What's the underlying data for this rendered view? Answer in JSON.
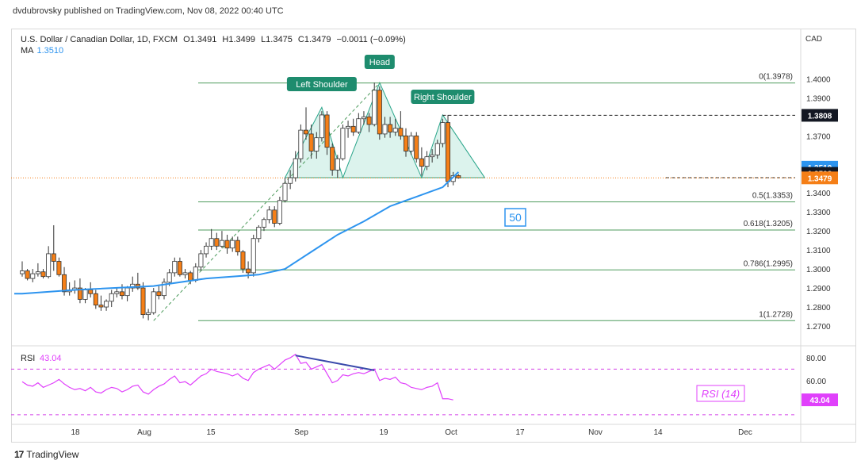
{
  "header": {
    "publisher": "dvdubrovsky published on TradingView.com, Nov 08, 2022 00:40 UTC",
    "symbol": "U.S. Dollar / Canadian Dollar, 1D, FXCM",
    "open": "O1.3491",
    "high": "H1.3499",
    "low": "L1.3475",
    "close": "C1.3479",
    "change": "−0.0011 (−0.09%)",
    "ma_label": "MA",
    "ma_value": "1.3510"
  },
  "colors": {
    "up_body": "#ffffff",
    "down_body": "#f57f17",
    "candle_outline": "#333333",
    "ma_line": "#2d94ef",
    "fib_lines": "#4d9b5c",
    "pattern_fill": "#d3f0e8",
    "pattern_label_bg": "#1e8c6e",
    "rsi_line": "#e040fb",
    "divergence": "#3949ab",
    "price_badge": "#f57f17"
  },
  "brand": {
    "logo": "17",
    "name": "TradingView"
  },
  "chart_data": {
    "type": "candlestick",
    "currency": "CAD",
    "ylim": [
      1.265,
      1.406
    ],
    "y_ticks": [
      1.27,
      1.28,
      1.29,
      1.3,
      1.31,
      1.32,
      1.33,
      1.34,
      1.37,
      1.39,
      1.4
    ],
    "y_tick_labels": [
      "1.2700",
      "1.2800",
      "1.2900",
      "1.3000",
      "1.3100",
      "1.3200",
      "1.3300",
      "1.3400",
      "1.3700",
      "1.3900",
      "1.4000"
    ],
    "x_tick_labels": [
      "18",
      "Aug",
      "15",
      "Sep",
      "19",
      "Oct",
      "17",
      "Nov",
      "14",
      "Dec"
    ],
    "candles": [
      {
        "o": 1.2975,
        "h": 1.304,
        "l": 1.296,
        "c": 1.299
      },
      {
        "o": 1.299,
        "h": 1.3,
        "l": 1.294,
        "c": 1.295
      },
      {
        "o": 1.295,
        "h": 1.3,
        "l": 1.293,
        "c": 1.2975
      },
      {
        "o": 1.2975,
        "h": 1.303,
        "l": 1.296,
        "c": 1.2985
      },
      {
        "o": 1.2985,
        "h": 1.3,
        "l": 1.295,
        "c": 1.296
      },
      {
        "o": 1.296,
        "h": 1.312,
        "l": 1.295,
        "c": 1.308
      },
      {
        "o": 1.308,
        "h": 1.323,
        "l": 1.299,
        "c": 1.304
      },
      {
        "o": 1.304,
        "h": 1.306,
        "l": 1.296,
        "c": 1.297
      },
      {
        "o": 1.297,
        "h": 1.301,
        "l": 1.286,
        "c": 1.288
      },
      {
        "o": 1.288,
        "h": 1.293,
        "l": 1.286,
        "c": 1.289
      },
      {
        "o": 1.289,
        "h": 1.294,
        "l": 1.287,
        "c": 1.29
      },
      {
        "o": 1.29,
        "h": 1.295,
        "l": 1.282,
        "c": 1.284
      },
      {
        "o": 1.284,
        "h": 1.29,
        "l": 1.282,
        "c": 1.289
      },
      {
        "o": 1.289,
        "h": 1.293,
        "l": 1.285,
        "c": 1.287
      },
      {
        "o": 1.287,
        "h": 1.289,
        "l": 1.279,
        "c": 1.281
      },
      {
        "o": 1.281,
        "h": 1.286,
        "l": 1.278,
        "c": 1.28
      },
      {
        "o": 1.28,
        "h": 1.284,
        "l": 1.278,
        "c": 1.283
      },
      {
        "o": 1.283,
        "h": 1.289,
        "l": 1.28,
        "c": 1.287
      },
      {
        "o": 1.287,
        "h": 1.29,
        "l": 1.285,
        "c": 1.288
      },
      {
        "o": 1.288,
        "h": 1.292,
        "l": 1.284,
        "c": 1.286
      },
      {
        "o": 1.286,
        "h": 1.291,
        "l": 1.283,
        "c": 1.29
      },
      {
        "o": 1.29,
        "h": 1.296,
        "l": 1.288,
        "c": 1.292
      },
      {
        "o": 1.292,
        "h": 1.298,
        "l": 1.289,
        "c": 1.29
      },
      {
        "o": 1.29,
        "h": 1.293,
        "l": 1.274,
        "c": 1.276
      },
      {
        "o": 1.276,
        "h": 1.279,
        "l": 1.273,
        "c": 1.277
      },
      {
        "o": 1.277,
        "h": 1.29,
        "l": 1.276,
        "c": 1.288
      },
      {
        "o": 1.288,
        "h": 1.291,
        "l": 1.284,
        "c": 1.286
      },
      {
        "o": 1.286,
        "h": 1.295,
        "l": 1.284,
        "c": 1.293
      },
      {
        "o": 1.293,
        "h": 1.3,
        "l": 1.291,
        "c": 1.298
      },
      {
        "o": 1.298,
        "h": 1.306,
        "l": 1.296,
        "c": 1.304
      },
      {
        "o": 1.304,
        "h": 1.306,
        "l": 1.296,
        "c": 1.297
      },
      {
        "o": 1.297,
        "h": 1.3,
        "l": 1.295,
        "c": 1.298
      },
      {
        "o": 1.298,
        "h": 1.299,
        "l": 1.292,
        "c": 1.294
      },
      {
        "o": 1.294,
        "h": 1.303,
        "l": 1.293,
        "c": 1.301
      },
      {
        "o": 1.301,
        "h": 1.31,
        "l": 1.299,
        "c": 1.308
      },
      {
        "o": 1.308,
        "h": 1.314,
        "l": 1.306,
        "c": 1.312
      },
      {
        "o": 1.312,
        "h": 1.321,
        "l": 1.31,
        "c": 1.316
      },
      {
        "o": 1.316,
        "h": 1.319,
        "l": 1.31,
        "c": 1.312
      },
      {
        "o": 1.312,
        "h": 1.32,
        "l": 1.311,
        "c": 1.315
      },
      {
        "o": 1.315,
        "h": 1.318,
        "l": 1.308,
        "c": 1.311
      },
      {
        "o": 1.311,
        "h": 1.317,
        "l": 1.309,
        "c": 1.315
      },
      {
        "o": 1.315,
        "h": 1.317,
        "l": 1.307,
        "c": 1.309
      },
      {
        "o": 1.309,
        "h": 1.31,
        "l": 1.298,
        "c": 1.3
      },
      {
        "o": 1.3,
        "h": 1.304,
        "l": 1.295,
        "c": 1.298
      },
      {
        "o": 1.298,
        "h": 1.318,
        "l": 1.296,
        "c": 1.316
      },
      {
        "o": 1.316,
        "h": 1.323,
        "l": 1.314,
        "c": 1.322
      },
      {
        "o": 1.322,
        "h": 1.327,
        "l": 1.32,
        "c": 1.326
      },
      {
        "o": 1.326,
        "h": 1.333,
        "l": 1.324,
        "c": 1.331
      },
      {
        "o": 1.331,
        "h": 1.333,
        "l": 1.322,
        "c": 1.324
      },
      {
        "o": 1.324,
        "h": 1.338,
        "l": 1.323,
        "c": 1.336
      },
      {
        "o": 1.336,
        "h": 1.348,
        "l": 1.335,
        "c": 1.345
      },
      {
        "o": 1.345,
        "h": 1.352,
        "l": 1.342,
        "c": 1.348
      },
      {
        "o": 1.348,
        "h": 1.362,
        "l": 1.346,
        "c": 1.358
      },
      {
        "o": 1.358,
        "h": 1.376,
        "l": 1.356,
        "c": 1.373
      },
      {
        "o": 1.373,
        "h": 1.385,
        "l": 1.368,
        "c": 1.371
      },
      {
        "o": 1.371,
        "h": 1.376,
        "l": 1.358,
        "c": 1.362
      },
      {
        "o": 1.362,
        "h": 1.372,
        "l": 1.358,
        "c": 1.369
      },
      {
        "o": 1.369,
        "h": 1.383,
        "l": 1.367,
        "c": 1.381
      },
      {
        "o": 1.381,
        "h": 1.383,
        "l": 1.36,
        "c": 1.364
      },
      {
        "o": 1.364,
        "h": 1.366,
        "l": 1.349,
        "c": 1.352
      },
      {
        "o": 1.352,
        "h": 1.36,
        "l": 1.348,
        "c": 1.358
      },
      {
        "o": 1.358,
        "h": 1.376,
        "l": 1.357,
        "c": 1.374
      },
      {
        "o": 1.374,
        "h": 1.378,
        "l": 1.369,
        "c": 1.375
      },
      {
        "o": 1.375,
        "h": 1.379,
        "l": 1.37,
        "c": 1.372
      },
      {
        "o": 1.372,
        "h": 1.382,
        "l": 1.371,
        "c": 1.379
      },
      {
        "o": 1.379,
        "h": 1.383,
        "l": 1.376,
        "c": 1.38
      },
      {
        "o": 1.38,
        "h": 1.382,
        "l": 1.372,
        "c": 1.376
      },
      {
        "o": 1.376,
        "h": 1.398,
        "l": 1.375,
        "c": 1.394
      },
      {
        "o": 1.394,
        "h": 1.396,
        "l": 1.368,
        "c": 1.371
      },
      {
        "o": 1.371,
        "h": 1.38,
        "l": 1.369,
        "c": 1.376
      },
      {
        "o": 1.376,
        "h": 1.38,
        "l": 1.369,
        "c": 1.372
      },
      {
        "o": 1.372,
        "h": 1.379,
        "l": 1.37,
        "c": 1.374
      },
      {
        "o": 1.374,
        "h": 1.383,
        "l": 1.368,
        "c": 1.37
      },
      {
        "o": 1.37,
        "h": 1.374,
        "l": 1.359,
        "c": 1.362
      },
      {
        "o": 1.362,
        "h": 1.372,
        "l": 1.36,
        "c": 1.37
      },
      {
        "o": 1.37,
        "h": 1.372,
        "l": 1.356,
        "c": 1.358
      },
      {
        "o": 1.358,
        "h": 1.364,
        "l": 1.349,
        "c": 1.354
      },
      {
        "o": 1.354,
        "h": 1.362,
        "l": 1.352,
        "c": 1.359
      },
      {
        "o": 1.359,
        "h": 1.363,
        "l": 1.356,
        "c": 1.36
      },
      {
        "o": 1.36,
        "h": 1.368,
        "l": 1.358,
        "c": 1.366
      },
      {
        "o": 1.366,
        "h": 1.379,
        "l": 1.364,
        "c": 1.377
      },
      {
        "o": 1.377,
        "h": 1.381,
        "l": 1.343,
        "c": 1.346
      },
      {
        "o": 1.346,
        "h": 1.351,
        "l": 1.344,
        "c": 1.3491
      },
      {
        "o": 1.3491,
        "h": 1.3499,
        "l": 1.3475,
        "c": 1.3479
      }
    ],
    "ma": {
      "name": "MA",
      "period_label": "50",
      "anchors": [
        [
          0,
          1.287
        ],
        [
          10,
          1.289
        ],
        [
          25,
          1.291
        ],
        [
          35,
          1.295
        ],
        [
          45,
          1.297
        ],
        [
          50,
          1.3
        ],
        [
          55,
          1.309
        ],
        [
          60,
          1.318
        ],
        [
          65,
          1.325
        ],
        [
          70,
          1.333
        ],
        [
          75,
          1.338
        ],
        [
          80,
          1.343
        ],
        [
          83,
          1.351
        ]
      ]
    },
    "fibonacci": [
      {
        "level": 0,
        "price": 1.3978,
        "label": "0(1.3978)"
      },
      {
        "level": 0.5,
        "price": 1.3353,
        "label": "0.5(1.3353)"
      },
      {
        "level": 0.618,
        "price": 1.3205,
        "label": "0.618(1.3205)"
      },
      {
        "level": 0.786,
        "price": 1.2995,
        "label": "0.786(1.2995)"
      },
      {
        "level": 1,
        "price": 1.2728,
        "label": "1(1.2728)"
      }
    ],
    "pattern": {
      "labels": [
        "Left Shoulder",
        "Head",
        "Right Shoulder"
      ],
      "polygon": [
        [
          50,
          1.348
        ],
        [
          57,
          1.385
        ],
        [
          61,
          1.348
        ],
        [
          68,
          1.398
        ],
        [
          76,
          1.348
        ],
        [
          80,
          1.381
        ],
        [
          88,
          1.348
        ]
      ]
    },
    "trend_line": {
      "from": [
        25,
        1.2728
      ],
      "to": [
        68,
        1.3978
      ]
    },
    "neckline": {
      "price": 1.348,
      "from": 61
    },
    "resistance": {
      "price": 1.3808,
      "from": 80
    },
    "price_badges": [
      {
        "label": "1.3808",
        "price": 1.3808,
        "style": "dark"
      },
      {
        "label": "1.3510",
        "price": 1.3535,
        "style": "ma"
      },
      {
        "label": "1.3503",
        "price": 1.3503,
        "style": "dark"
      },
      {
        "label": "1.3479",
        "price": 1.3479,
        "style": "orange"
      }
    ],
    "rsi": {
      "label": "RSI",
      "value": "43.04",
      "title": "RSI (14)",
      "ylim": [
        25,
        87
      ],
      "y_tick_labels": [
        "80.00",
        "60.00"
      ],
      "y_ticks": [
        80,
        60
      ],
      "upper_band": 70,
      "lower_band": 30,
      "values": [
        59,
        56,
        55,
        58,
        54,
        56,
        58,
        61,
        57,
        54,
        52,
        53,
        51,
        54,
        50,
        49,
        52,
        54,
        53,
        50,
        52,
        55,
        56,
        50,
        48,
        52,
        55,
        57,
        61,
        64,
        58,
        59,
        56,
        60,
        64,
        66,
        70,
        68,
        67,
        66,
        64,
        66,
        62,
        60,
        67,
        70,
        72,
        74,
        70,
        74,
        78,
        80,
        83,
        75,
        76,
        70,
        72,
        74,
        66,
        58,
        60,
        65,
        64,
        66,
        67,
        66,
        68,
        70,
        60,
        62,
        61,
        63,
        58,
        57,
        54,
        53,
        52,
        54,
        55,
        58,
        44,
        44,
        43
      ],
      "divergence": {
        "from": [
          52,
          82
        ],
        "to": [
          67,
          69
        ]
      }
    }
  }
}
